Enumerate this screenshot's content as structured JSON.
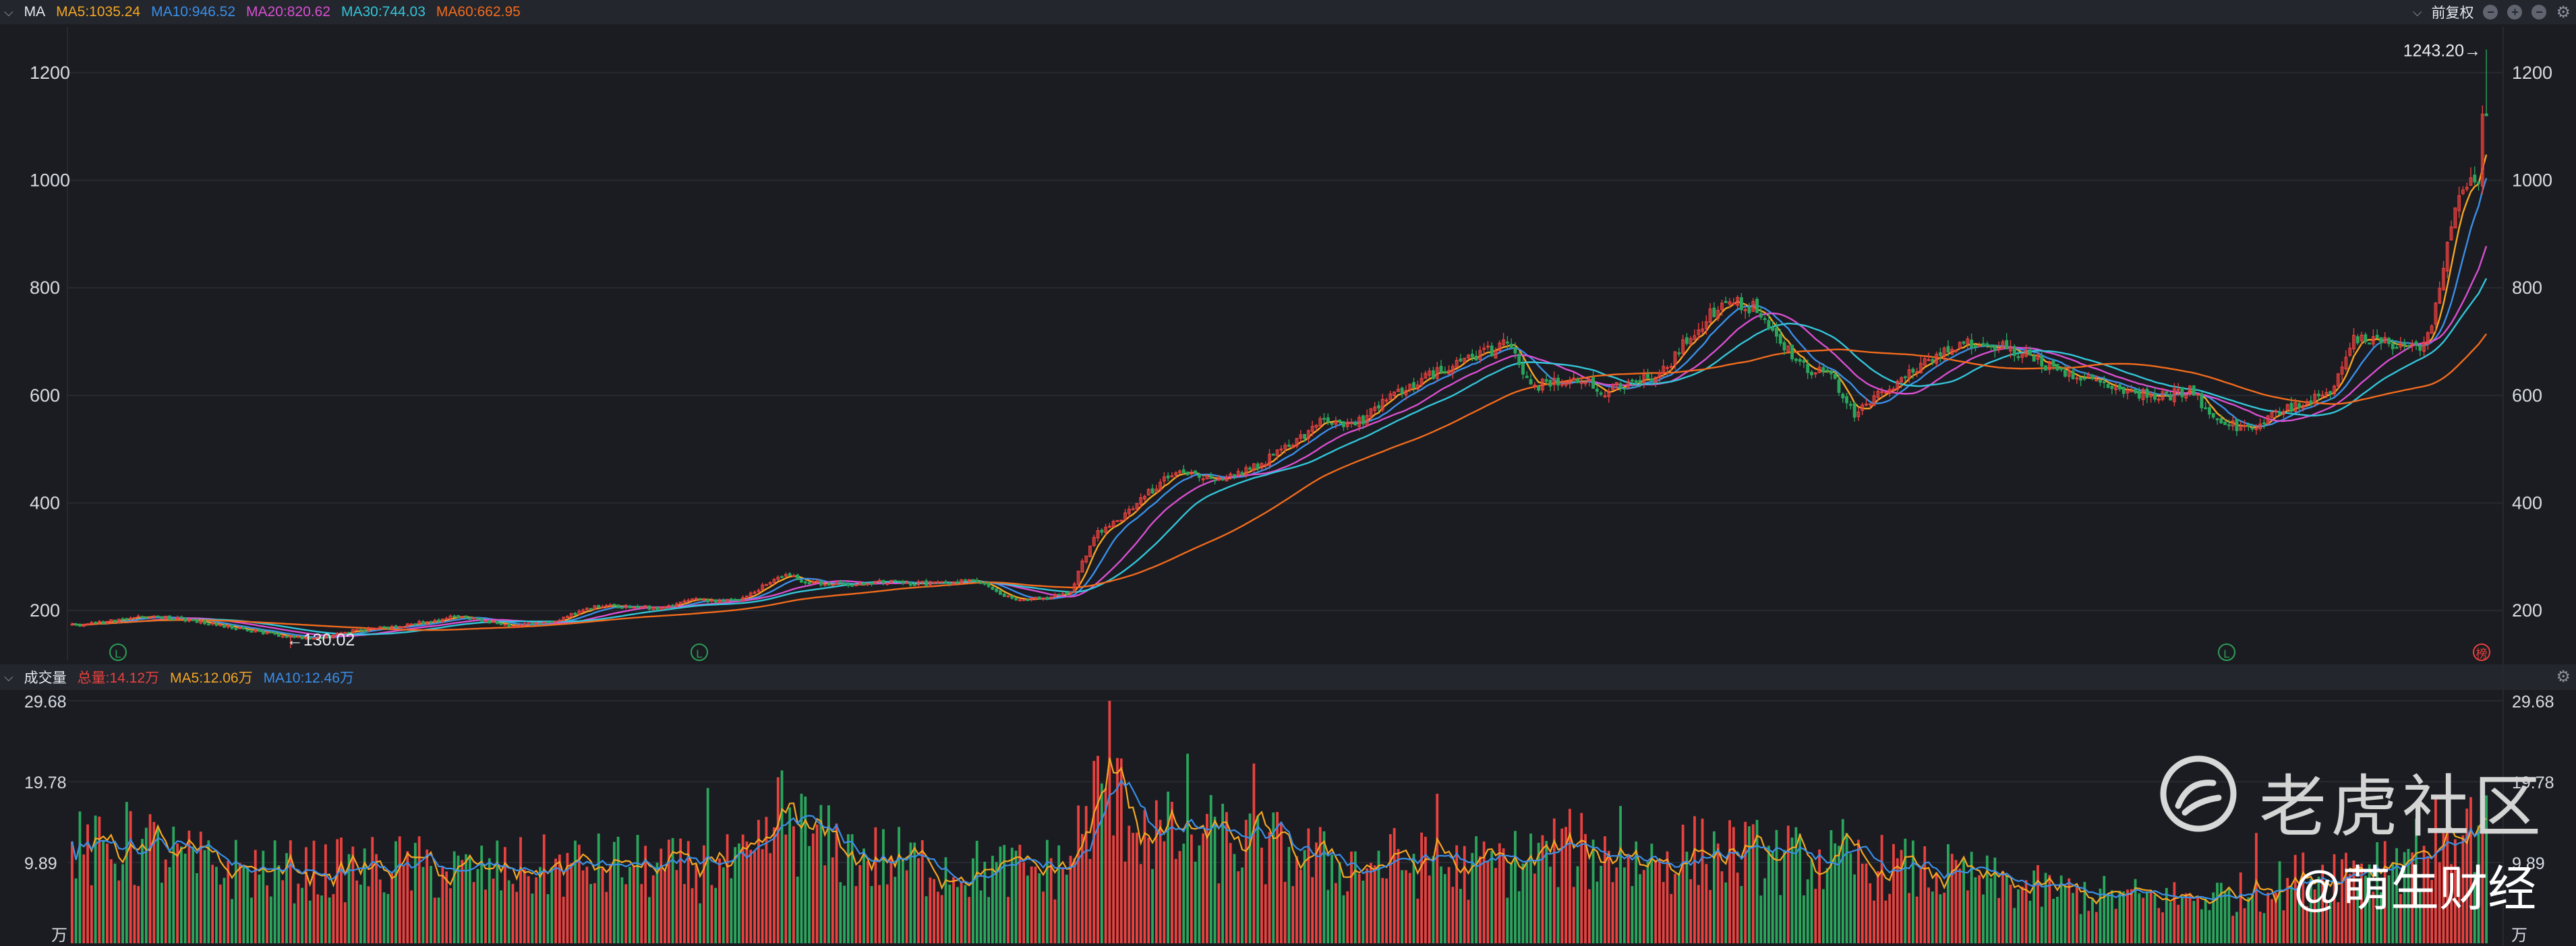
{
  "main_header": {
    "indicator": "MA",
    "ma_legend": [
      {
        "label": "MA5:1035.24",
        "color": "#f5a623"
      },
      {
        "label": "MA10:946.52",
        "color": "#3b8fe8"
      },
      {
        "label": "MA20:820.62",
        "color": "#d94fd1"
      },
      {
        "label": "MA30:744.03",
        "color": "#34c5d9"
      },
      {
        "label": "MA60:662.95",
        "color": "#f26b1d"
      }
    ],
    "adjust_label": "前复权",
    "controls": [
      {
        "name": "minus-icon",
        "glyph": "−"
      },
      {
        "name": "plus-icon",
        "glyph": "+"
      },
      {
        "name": "collapse-icon",
        "glyph": "−"
      }
    ]
  },
  "volume_header": {
    "title": "成交量",
    "legend": [
      {
        "label": "总量:14.12万",
        "color": "#e8413e"
      },
      {
        "label": "MA5:12.06万",
        "color": "#f5a623"
      },
      {
        "label": "MA10:12.46万",
        "color": "#3b8fe8"
      }
    ]
  },
  "annotations": {
    "high_label": "1243.20→",
    "low_label": "←130.02",
    "markers": [
      {
        "text": "L",
        "color": "#2e9e57",
        "kind": "circle"
      },
      {
        "text": "L",
        "color": "#2e9e57",
        "kind": "circle"
      },
      {
        "text": "L",
        "color": "#2e9e57",
        "kind": "circle"
      },
      {
        "text": "榜",
        "color": "#e8413e",
        "kind": "circle"
      }
    ]
  },
  "watermark": {
    "brand": "老虎社区",
    "handle": "@萌生财经"
  },
  "colors": {
    "up": "#e8413e",
    "down": "#2aa55c",
    "grid": "#262930"
  },
  "chart_data": [
    {
      "type": "candlestick",
      "title": "",
      "y_ticks_left": [
        "1200",
        "1000",
        "800",
        "600",
        "400",
        "200"
      ],
      "y_ticks_right": [
        "1200",
        "1000",
        "800",
        "600",
        "400",
        "200"
      ],
      "y_tick_values": [
        1200,
        1000,
        800,
        600,
        400,
        200
      ],
      "ylim": [
        130,
        1260
      ],
      "grid": true,
      "num_bars": 400,
      "price_anchors": [
        [
          0,
          172
        ],
        [
          8,
          178
        ],
        [
          18,
          190
        ],
        [
          30,
          183
        ],
        [
          42,
          168
        ],
        [
          55,
          152
        ],
        [
          63,
          148
        ],
        [
          72,
          162
        ],
        [
          85,
          172
        ],
        [
          100,
          190
        ],
        [
          112,
          172
        ],
        [
          122,
          178
        ],
        [
          135,
          208
        ],
        [
          150,
          205
        ],
        [
          160,
          220
        ],
        [
          170,
          218
        ],
        [
          182,
          265
        ],
        [
          190,
          252
        ],
        [
          200,
          248
        ],
        [
          208,
          255
        ],
        [
          215,
          250
        ],
        [
          225,
          252
        ],
        [
          232,
          255
        ],
        [
          240,
          224
        ],
        [
          248,
          220
        ],
        [
          256,
          234
        ],
        [
          262,
          340
        ],
        [
          268,
          365
        ],
        [
          272,
          395
        ],
        [
          282,
          455
        ],
        [
          295,
          445
        ],
        [
          302,
          462
        ],
        [
          312,
          505
        ],
        [
          320,
          552
        ],
        [
          330,
          550
        ],
        [
          340,
          605
        ],
        [
          350,
          645
        ],
        [
          360,
          668
        ],
        [
          368,
          702
        ],
        [
          374,
          615
        ],
        [
          385,
          632
        ]
      ],
      "price_anchors_segment2": [
        [
          0,
          632
        ],
        [
          8,
          608
        ],
        [
          16,
          625
        ],
        [
          24,
          650
        ],
        [
          30,
          712
        ],
        [
          38,
          775
        ],
        [
          46,
          765
        ],
        [
          52,
          708
        ],
        [
          58,
          660
        ],
        [
          66,
          632
        ],
        [
          72,
          565
        ],
        [
          80,
          608
        ],
        [
          88,
          652
        ],
        [
          96,
          685
        ],
        [
          104,
          702
        ],
        [
          110,
          692
        ],
        [
          118,
          668
        ],
        [
          126,
          640
        ],
        [
          134,
          628
        ],
        [
          142,
          610
        ],
        [
          150,
          598
        ],
        [
          158,
          608
        ],
        [
          164,
          565
        ],
        [
          170,
          540
        ],
        [
          176,
          548
        ],
        [
          182,
          570
        ],
        [
          188,
          590
        ],
        [
          194,
          610
        ],
        [
          200,
          702
        ],
        [
          206,
          700
        ],
        [
          212,
          692
        ],
        [
          218,
          688
        ]
      ],
      "final_spike": [
        [
          0,
          688
        ],
        [
          4,
          790
        ],
        [
          8,
          960
        ],
        [
          11,
          990
        ],
        [
          14,
          1010
        ],
        [
          16,
          1243
        ]
      ],
      "ma_series": [
        {
          "name": "MA5",
          "last": 1035.24
        },
        {
          "name": "MA10",
          "last": 946.52
        },
        {
          "name": "MA20",
          "last": 820.62
        },
        {
          "name": "MA30",
          "last": 744.03
        },
        {
          "name": "MA60",
          "last": 662.95
        }
      ],
      "annotations": [
        {
          "text": "1243.20→",
          "value": 1243.2,
          "kind": "high"
        },
        {
          "text": "←130.02",
          "value": 130.02,
          "kind": "low"
        }
      ]
    },
    {
      "type": "bar",
      "title": "",
      "y_ticks": [
        "29.68",
        "19.78",
        "9.89"
      ],
      "y_tick_values": [
        29.68,
        19.78,
        9.89
      ],
      "unit_label": "万",
      "ylim": [
        0,
        29.68
      ],
      "grid": true,
      "volume_anchors": [
        [
          0,
          11.5
        ],
        [
          10,
          10.8
        ],
        [
          20,
          11.8
        ],
        [
          30,
          9.8
        ],
        [
          40,
          9.2
        ],
        [
          55,
          8.8
        ],
        [
          70,
          9.0
        ],
        [
          85,
          9.4
        ],
        [
          100,
          8.6
        ],
        [
          120,
          9.2
        ],
        [
          140,
          9.5
        ],
        [
          160,
          8.8
        ],
        [
          175,
          9.6
        ],
        [
          182,
          16.0
        ],
        [
          190,
          12.5
        ],
        [
          200,
          10.8
        ],
        [
          215,
          9.8
        ],
        [
          230,
          9.0
        ],
        [
          245,
          8.8
        ],
        [
          255,
          9.5
        ],
        [
          262,
          17.5
        ],
        [
          270,
          16.5
        ],
        [
          280,
          13.0
        ],
        [
          290,
          12.8
        ],
        [
          300,
          12.2
        ],
        [
          312,
          11.0
        ],
        [
          325,
          9.5
        ],
        [
          340,
          10.0
        ],
        [
          355,
          9.0
        ],
        [
          370,
          10.0
        ],
        [
          385,
          11.5
        ],
        [
          400,
          10.0
        ],
        [
          420,
          11.2
        ],
        [
          440,
          10.2
        ],
        [
          460,
          9.5
        ],
        [
          480,
          8.5
        ],
        [
          500,
          6.8
        ],
        [
          520,
          5.8
        ],
        [
          540,
          5.5
        ],
        [
          560,
          6.2
        ],
        [
          575,
          8.5
        ],
        [
          590,
          10.0
        ],
        [
          605,
          12.0
        ],
        [
          612,
          14.5
        ],
        [
          617,
          13.5
        ]
      ],
      "spikes": [
        [
          14,
          17.3
        ],
        [
          163,
          19.0
        ],
        [
          260,
          16.8
        ],
        [
          266,
          29.7
        ],
        [
          286,
          23.2
        ],
        [
          303,
          22.0
        ],
        [
          350,
          18.3
        ],
        [
          397,
          16.8
        ],
        [
          454,
          15.2
        ],
        [
          560,
          13.5
        ]
      ]
    }
  ]
}
